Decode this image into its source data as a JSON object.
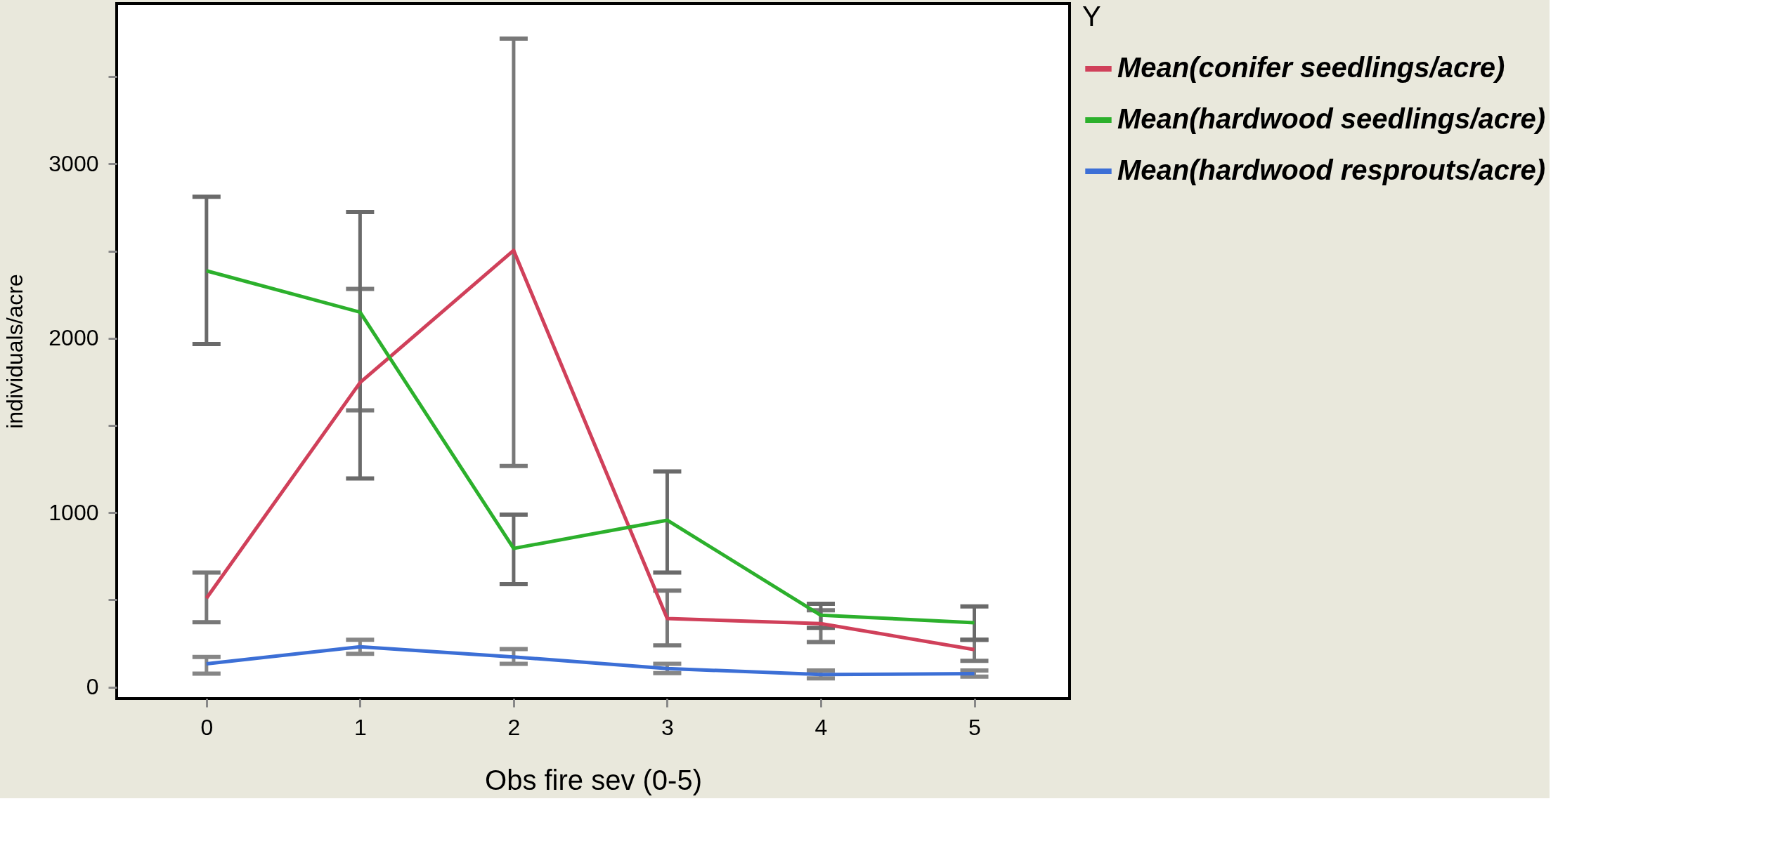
{
  "chart_data": {
    "type": "line",
    "xlabel": "Obs fire sev (0-5)",
    "ylabel": "individuals/acre",
    "legend_title": "Y",
    "x": [
      0,
      1,
      2,
      3,
      4,
      5
    ],
    "series": [
      {
        "name": "Mean(conifer seedlings/acre)",
        "color": "#d0405a",
        "values": [
          510,
          1746,
          2504,
          393,
          364,
          215
        ],
        "errors": [
          [
            372,
            657
          ],
          [
            1587,
            2283
          ],
          [
            1268,
            3719
          ],
          [
            239,
            553
          ],
          [
            258,
            440
          ],
          [
            150,
            271
          ]
        ]
      },
      {
        "name": "Mean(hardwood seedlings/acre)",
        "color": "#2cb02c",
        "values": [
          2387,
          2150,
          795,
          957,
          412,
          369
        ],
        "errors": [
          [
            1967,
            2812
          ],
          [
            1196,
            2724
          ],
          [
            590,
            989
          ],
          [
            657,
            1236
          ],
          [
            340,
            478
          ],
          [
            271,
            462
          ]
        ]
      },
      {
        "name": "Mean(hardwood resprouts/acre)",
        "color": "#3c6fd6",
        "values": [
          133,
          231,
          173,
          106,
          72,
          77
        ],
        "errors": [
          [
            77,
            173
          ],
          [
            191,
            271
          ],
          [
            133,
            218
          ],
          [
            80,
            133
          ],
          [
            50,
            95
          ],
          [
            60,
            95
          ]
        ]
      }
    ],
    "xlim": [
      -0.585,
      5.62
    ],
    "ylim": [
      -66,
      3920
    ],
    "xticks": [
      0,
      1,
      2,
      3,
      4,
      5
    ],
    "yticks": [
      0,
      {
        "value": 500,
        "label": null
      },
      1000,
      {
        "value": 1500,
        "label": null
      },
      2000,
      {
        "value": 2500,
        "label": null
      },
      3000,
      {
        "value": 3500,
        "label": null
      }
    ],
    "grid": false,
    "legend": "top right",
    "marker": "none",
    "line_style": "solid"
  }
}
